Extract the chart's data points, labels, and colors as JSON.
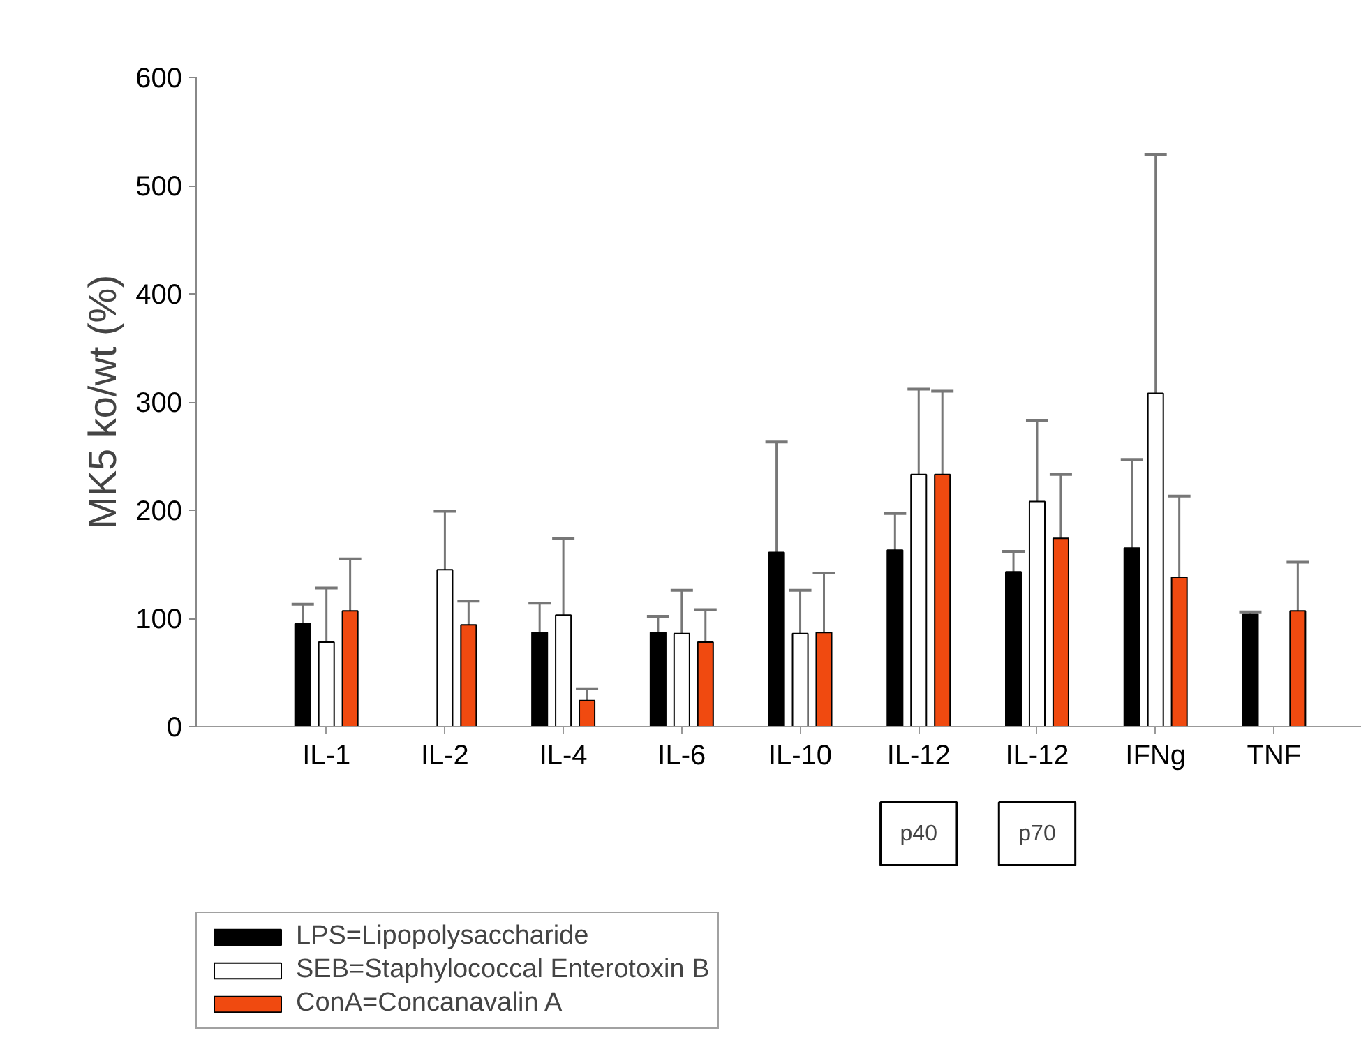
{
  "chart_data": {
    "type": "bar",
    "ylabel": "MK5 ko/wt (%)",
    "categories": [
      "IL-1",
      "IL-2",
      "IL-4",
      "IL-6",
      "IL-10",
      "IL-12",
      "IL-12",
      "IFNg",
      "TNF"
    ],
    "ylim": [
      0,
      600
    ],
    "yticks": [
      0,
      100,
      200,
      300,
      400,
      500,
      600
    ],
    "grid": false,
    "legend": "bottom",
    "series": [
      {
        "name": "LPS=Lipopolysaccharide",
        "color": "#000000",
        "values": [
          95,
          null,
          87,
          87,
          161,
          163,
          143,
          165,
          104
        ],
        "errors": [
          [
            95,
            113
          ],
          null,
          [
            87,
            114
          ],
          [
            87,
            102
          ],
          [
            161,
            263
          ],
          [
            163,
            197
          ],
          [
            143,
            162
          ],
          [
            165,
            247
          ],
          [
            104,
            106
          ]
        ]
      },
      {
        "name": "SEB=Staphylococcal Enterotoxin B",
        "color": "#ffffff",
        "values": [
          78,
          145,
          103,
          86,
          86,
          233,
          208,
          308,
          null
        ],
        "errors": [
          [
            78,
            128
          ],
          [
            145,
            199
          ],
          [
            103,
            174
          ],
          [
            86,
            126
          ],
          [
            86,
            126
          ],
          [
            233,
            312
          ],
          [
            208,
            283
          ],
          [
            308,
            529
          ],
          null
        ]
      },
      {
        "name": "ConA=Concanavalin A",
        "color": "#f04a10",
        "values": [
          107,
          94,
          24,
          78,
          87,
          233,
          174,
          138,
          107
        ],
        "errors": [
          [
            107,
            155
          ],
          [
            94,
            116
          ],
          [
            24,
            35
          ],
          [
            78,
            108
          ],
          [
            87,
            142
          ],
          [
            233,
            310
          ],
          [
            174,
            233
          ],
          [
            138,
            213
          ],
          [
            107,
            152
          ]
        ]
      }
    ],
    "annotations": [
      "p40",
      "p70"
    ]
  }
}
